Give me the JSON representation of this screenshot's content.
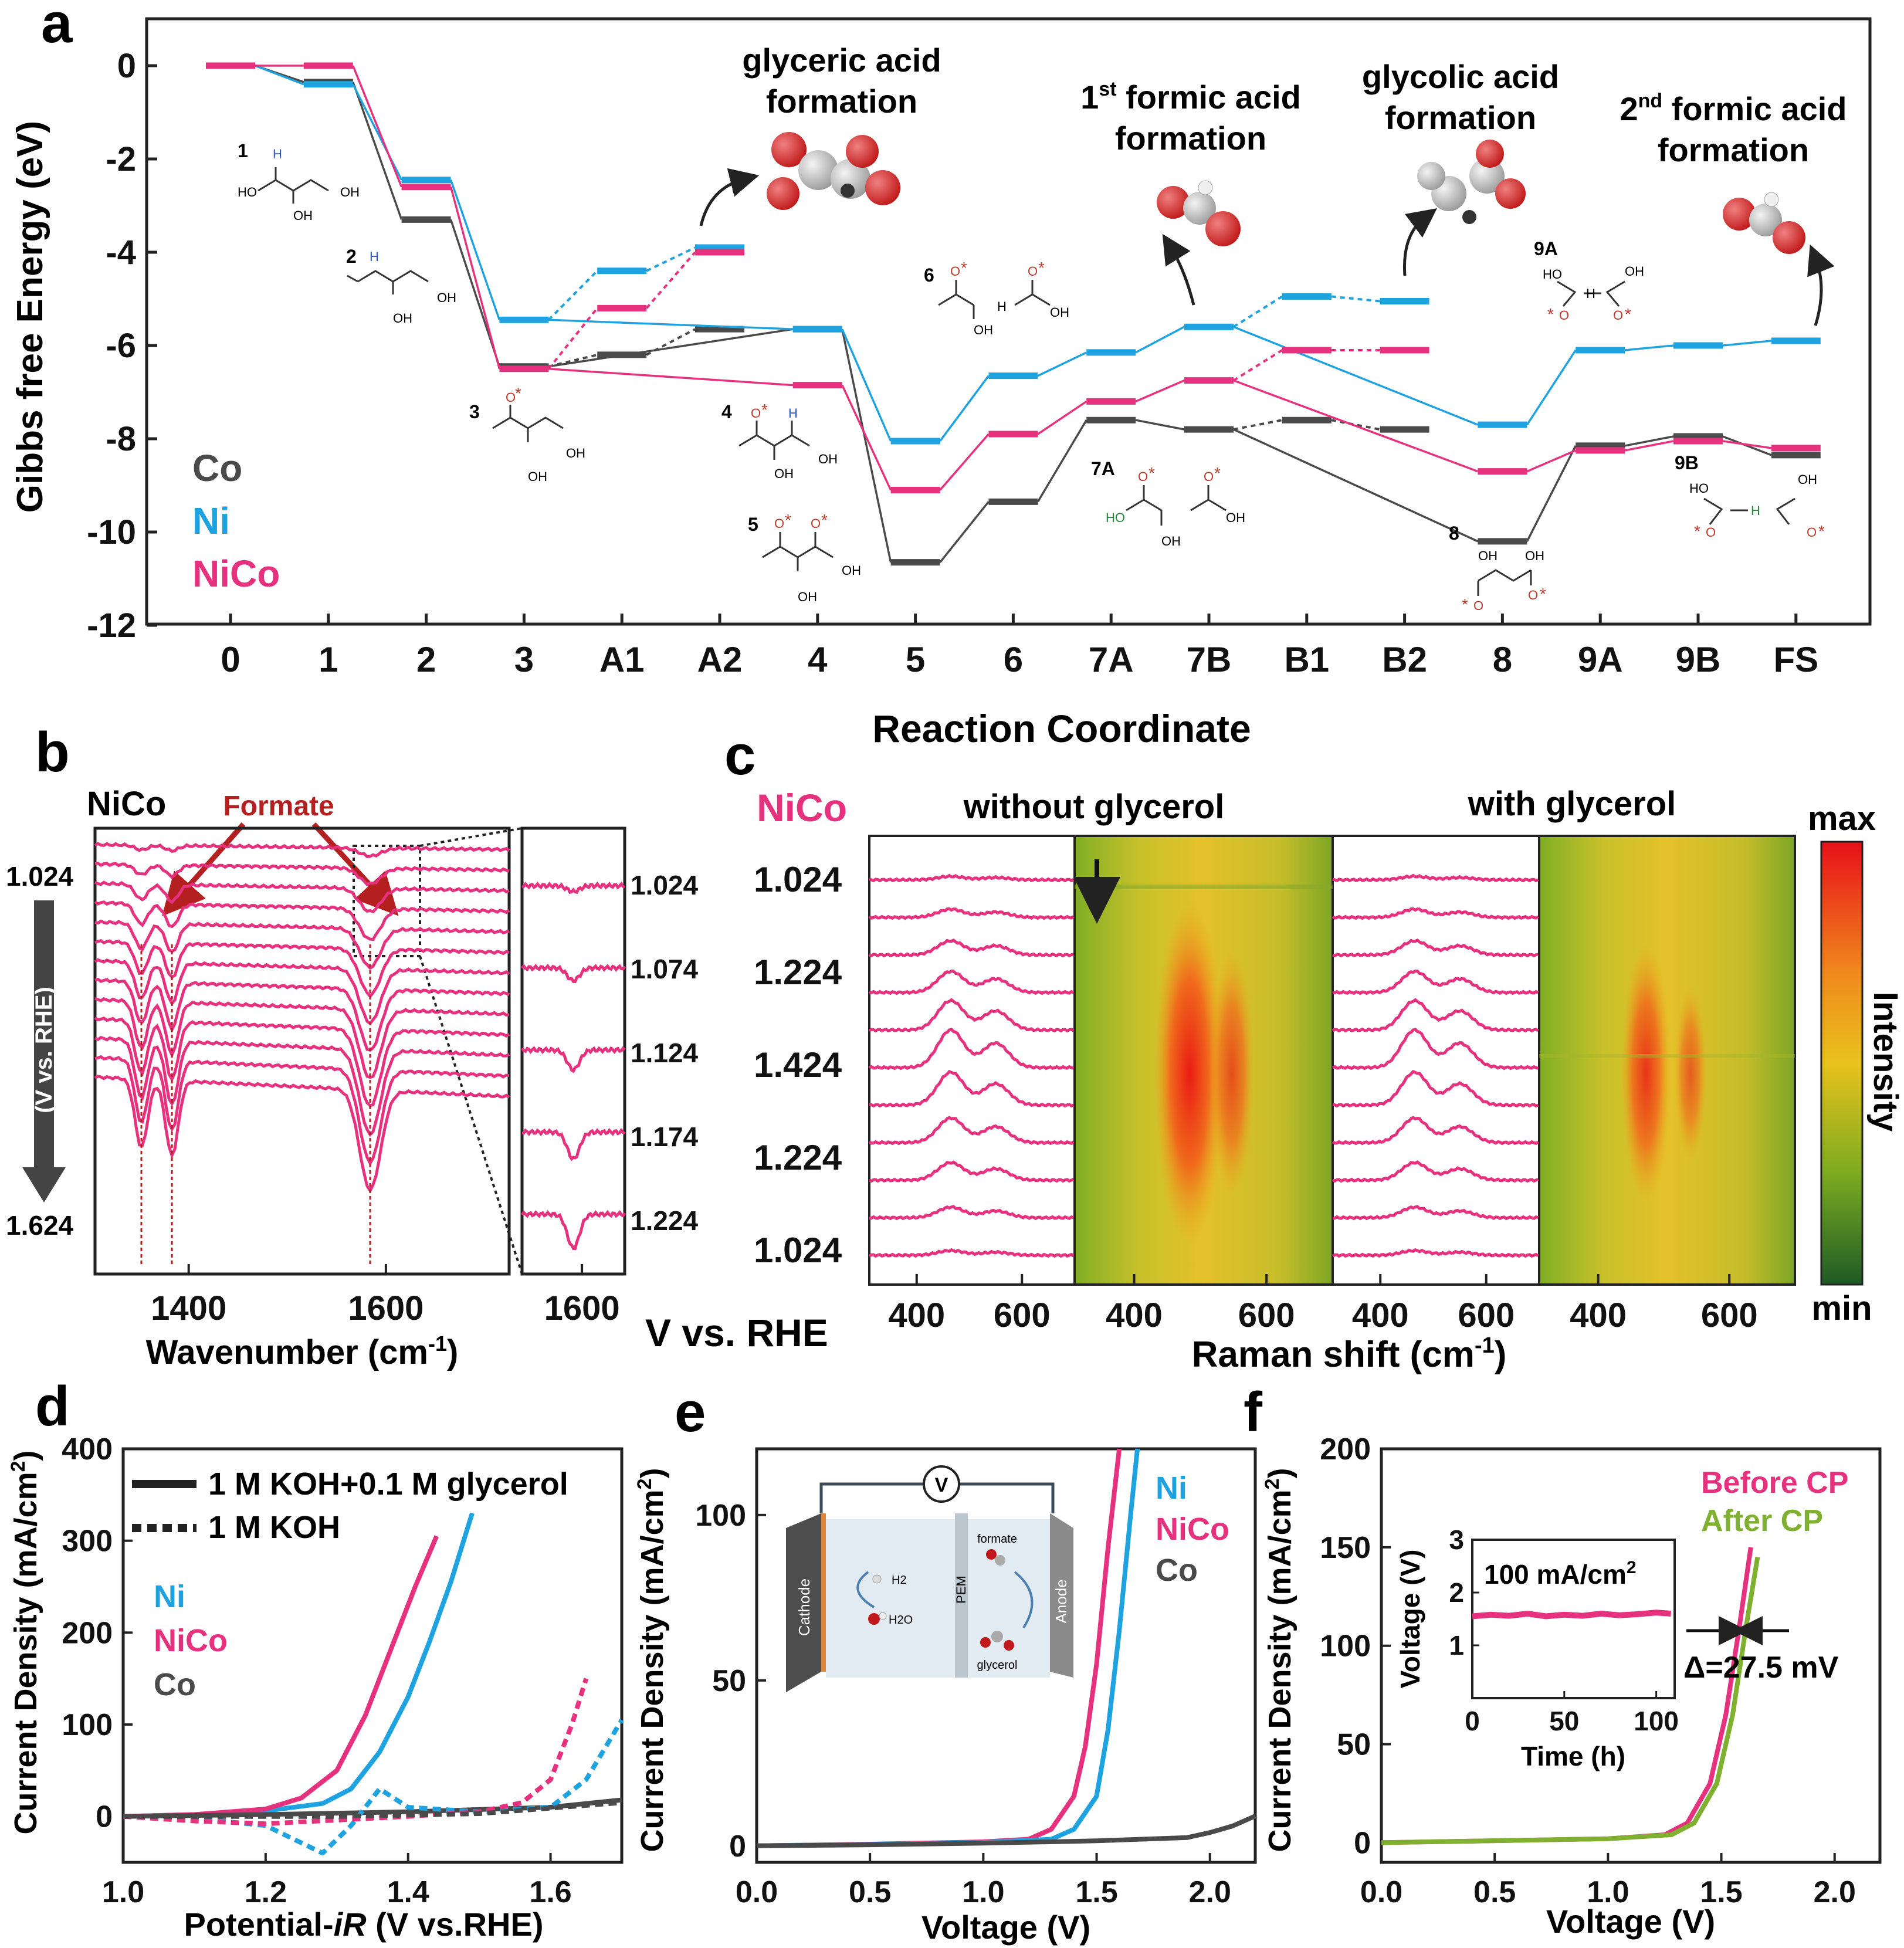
{
  "panels": {
    "a": "a",
    "b": "b",
    "c": "c",
    "d": "d",
    "e": "e",
    "f": "f"
  },
  "chart_data": [
    {
      "id": "a",
      "type": "line",
      "title": "",
      "xlabel": "Reaction Coordinate",
      "ylabel": "Gibbs free  Energy (eV)",
      "ylim": [
        -12,
        1
      ],
      "yticks": [
        "0",
        "-2",
        "-4",
        "-6",
        "-8",
        "-10",
        "-12"
      ],
      "categories": [
        "0",
        "1",
        "2",
        "3",
        "A1",
        "A2",
        "4",
        "5",
        "6",
        "7A",
        "7B",
        "B1",
        "B2",
        "8",
        "9A",
        "9B",
        "FS"
      ],
      "series": [
        {
          "name": "Co",
          "color": "#4a4a4a",
          "main": [
            0,
            -0.35,
            -3.3,
            -6.45,
            null,
            null,
            -5.65,
            -10.65,
            -9.35,
            -7.6,
            -7.8,
            null,
            null,
            -10.2,
            -8.15,
            -7.95,
            -8.35
          ],
          "branch": [
            [
              "3",
              "A1",
              -6.45,
              -6.2
            ],
            [
              "A1",
              "A2",
              -6.2,
              -5.65
            ],
            [
              "7B",
              "B1",
              -7.8,
              -7.6
            ],
            [
              "B1",
              "B2",
              -7.6,
              -7.8
            ]
          ]
        },
        {
          "name": "Ni",
          "color": "#1fa3e0",
          "main": [
            0,
            -0.4,
            -2.45,
            -5.45,
            null,
            null,
            -5.65,
            -8.05,
            -6.65,
            -6.15,
            -5.6,
            null,
            null,
            -7.7,
            -6.1,
            -6.0,
            -5.9
          ],
          "branch": [
            [
              "3",
              "A1",
              -5.45,
              -4.4
            ],
            [
              "A1",
              "A2",
              -4.4,
              -3.9
            ],
            [
              "7B",
              "B1",
              -5.6,
              -4.95
            ],
            [
              "B1",
              "B2",
              -4.95,
              -5.05
            ]
          ]
        },
        {
          "name": "NiCo",
          "color": "#e6317e",
          "main": [
            0,
            0,
            -2.6,
            -6.5,
            null,
            null,
            -6.85,
            -9.1,
            -7.9,
            -7.2,
            -6.75,
            null,
            null,
            -8.7,
            -8.25,
            -8.05,
            -8.2
          ],
          "branch": [
            [
              "3",
              "A1",
              -6.5,
              -5.2
            ],
            [
              "A1",
              "A2",
              -5.2,
              -4.0
            ],
            [
              "7B",
              "B1",
              -6.75,
              -6.1
            ],
            [
              "B1",
              "B2",
              -6.1,
              -6.1
            ]
          ]
        }
      ],
      "legend": [
        "Co",
        "Ni",
        "NiCo"
      ],
      "annotations": {
        "glyceric": [
          "glyceric acid",
          "formation"
        ],
        "formic1": [
          "1",
          "st",
          " formic acid",
          "formation"
        ],
        "glycolic": [
          "glycolic acid",
          "formation"
        ],
        "formic2": [
          "2",
          "nd",
          " formic acid",
          "formation"
        ],
        "steps": {
          "s1": "1",
          "s2": "2",
          "s3": "3",
          "s4": "4",
          "s5": "5",
          "s6": "6",
          "s7a": "7A",
          "s8": "8",
          "s9a": "9A",
          "s9b": "9B"
        },
        "atoms": {
          "h": "H",
          "ho": "HO",
          "oh": "OH",
          "o": "O",
          "star": "*"
        }
      }
    },
    {
      "id": "b",
      "type": "line",
      "sample": "NiCo",
      "annotation": "Formate",
      "xlabel_pre": "Wavenumber (cm",
      "xlabel_sup": "-1",
      "xlabel_post": ")",
      "main_xticks": [
        "1400",
        "1600"
      ],
      "inset_xticks": [
        "1600"
      ],
      "potential_top": "1.024",
      "potential_bottom": "1.624",
      "axis_label": "(V vs. RHE)",
      "inset_potentials": [
        "1.024",
        "1.074",
        "1.124",
        "1.174",
        "1.224"
      ],
      "trace_count": 13,
      "bands_cm1": [
        1352,
        1383,
        1584
      ]
    },
    {
      "id": "c",
      "type": "heatmap",
      "sample": "NiCo",
      "left_title": "without glycerol",
      "right_title": "with glycerol",
      "potentials": [
        "1.024",
        "1.224",
        "1.424",
        "1.224",
        "1.024"
      ],
      "xticks": [
        "400",
        "600"
      ],
      "xlabel_pre": "Raman shift (cm",
      "xlabel_sup": "-1",
      "xlabel_post": ")",
      "ylabel": "V vs. RHE",
      "colorbar": {
        "max": "max",
        "min": "min",
        "label": "Intensity"
      },
      "bands_cm1": [
        465,
        550
      ]
    },
    {
      "id": "d",
      "type": "line",
      "xlabel_pre": "Potential-",
      "xlabel_it": "iR",
      "xlabel_post": " (V vs.RHE)",
      "ylabel": "Current Density (mA/cm",
      "ylabel_sup": "2",
      "ylabel_post": ")",
      "xlim": [
        1.0,
        1.7
      ],
      "ylim": [
        -50,
        400
      ],
      "xticks": [
        "1.0",
        "1.2",
        "1.4",
        "1.6"
      ],
      "yticks": [
        "0",
        "100",
        "200",
        "300",
        "400"
      ],
      "legend_lines": [
        "1 M KOH+0.1 M glycerol",
        "1 M KOH"
      ],
      "legend_colors": [
        "Ni",
        "NiCo",
        "Co"
      ],
      "series": [
        {
          "name": "Ni",
          "style": "solid",
          "x": [
            1.0,
            1.1,
            1.2,
            1.28,
            1.32,
            1.36,
            1.4,
            1.43,
            1.46,
            1.49
          ],
          "y": [
            0,
            2,
            6,
            14,
            30,
            70,
            130,
            190,
            255,
            330
          ]
        },
        {
          "name": "NiCo",
          "style": "solid",
          "x": [
            1.0,
            1.1,
            1.2,
            1.25,
            1.3,
            1.34,
            1.38,
            1.41,
            1.44
          ],
          "y": [
            0,
            2,
            8,
            20,
            50,
            110,
            190,
            250,
            305
          ]
        },
        {
          "name": "Co",
          "style": "solid",
          "x": [
            1.0,
            1.2,
            1.4,
            1.6,
            1.7
          ],
          "y": [
            0,
            2,
            5,
            10,
            18
          ]
        },
        {
          "name": "Ni",
          "style": "dashed",
          "x": [
            1.0,
            1.1,
            1.2,
            1.24,
            1.28,
            1.32,
            1.36,
            1.4,
            1.5,
            1.6,
            1.65,
            1.7
          ],
          "y": [
            0,
            -2,
            -10,
            -25,
            -40,
            -10,
            30,
            10,
            5,
            10,
            40,
            105
          ]
        },
        {
          "name": "NiCo",
          "style": "dashed",
          "x": [
            1.0,
            1.1,
            1.2,
            1.3,
            1.4,
            1.5,
            1.56,
            1.6,
            1.63,
            1.65
          ],
          "y": [
            0,
            -5,
            -8,
            -4,
            0,
            5,
            15,
            40,
            100,
            150
          ]
        },
        {
          "name": "Co",
          "style": "dashed",
          "x": [
            1.0,
            1.3,
            1.5,
            1.7
          ],
          "y": [
            0,
            0,
            3,
            15
          ]
        }
      ]
    },
    {
      "id": "e",
      "type": "line",
      "xlabel": "Voltage (V)",
      "ylabel": "Current Density (mA/cm",
      "ylabel_sup": "2",
      "ylabel_post": ")",
      "xlim": [
        0,
        2.2
      ],
      "ylim": [
        -5,
        120
      ],
      "xticks": [
        "0.0",
        "0.5",
        "1.0",
        "1.5",
        "2.0"
      ],
      "yticks": [
        "0",
        "50",
        "100"
      ],
      "legend": [
        "Ni",
        "NiCo",
        "Co"
      ],
      "inset_labels": {
        "v": "V",
        "cathode": "Cathode",
        "anode": "Anode",
        "pem": "PEM",
        "h2": "H2",
        "h2o": "H2O",
        "formate": "formate",
        "glycerol": "glycerol"
      },
      "series": [
        {
          "name": "NiCo",
          "x": [
            0,
            0.5,
            1.0,
            1.2,
            1.3,
            1.4,
            1.45,
            1.5,
            1.55,
            1.6
          ],
          "y": [
            0,
            0.5,
            1.2,
            2,
            5,
            15,
            30,
            55,
            90,
            120
          ]
        },
        {
          "name": "Ni",
          "x": [
            0,
            0.5,
            1.0,
            1.3,
            1.4,
            1.5,
            1.55,
            1.6,
            1.65,
            1.68
          ],
          "y": [
            0,
            0.4,
            1,
            2,
            5,
            15,
            35,
            65,
            100,
            120
          ]
        },
        {
          "name": "Co",
          "x": [
            0,
            0.5,
            1.0,
            1.5,
            1.9,
            2.0,
            2.1,
            2.2
          ],
          "y": [
            0,
            0.3,
            0.8,
            1.5,
            2.5,
            4,
            6,
            9
          ]
        }
      ]
    },
    {
      "id": "f",
      "type": "line",
      "xlabel": "Voltage (V)",
      "ylabel": "Current Density (mA/cm",
      "ylabel_sup": "2",
      "ylabel_post": ")",
      "xlim": [
        0,
        2.2
      ],
      "ylim": [
        -10,
        200
      ],
      "xticks": [
        "0.0",
        "0.5",
        "1.0",
        "1.5",
        "2.0"
      ],
      "yticks": [
        "0",
        "50",
        "100",
        "150",
        "200"
      ],
      "legend": [
        "Before CP",
        "After CP"
      ],
      "delta_label": "Δ=27.5 mV",
      "series": [
        {
          "name": "Before CP",
          "x": [
            0,
            0.5,
            1.0,
            1.25,
            1.35,
            1.45,
            1.52,
            1.58,
            1.63
          ],
          "y": [
            0,
            1,
            2,
            4,
            10,
            30,
            65,
            110,
            150
          ]
        },
        {
          "name": "After CP",
          "x": [
            0,
            0.5,
            1.0,
            1.28,
            1.38,
            1.48,
            1.55,
            1.61,
            1.66
          ],
          "y": [
            0,
            1,
            2,
            4,
            10,
            30,
            65,
            110,
            145
          ]
        }
      ],
      "inset": {
        "xlabel": "Time (h)",
        "ylabel": "Voltage (V)",
        "label_pre": "100 mA/cm",
        "label_sup": "2",
        "xticks": [
          "0",
          "50",
          "100"
        ],
        "yticks": [
          "1",
          "2",
          "3"
        ],
        "xlim": [
          0,
          110
        ],
        "ylim": [
          0,
          3
        ],
        "x": [
          0,
          10,
          20,
          30,
          40,
          50,
          60,
          70,
          80,
          90,
          100,
          108
        ],
        "y": [
          1.55,
          1.58,
          1.56,
          1.6,
          1.55,
          1.58,
          1.56,
          1.6,
          1.57,
          1.59,
          1.62,
          1.6
        ]
      }
    }
  ]
}
